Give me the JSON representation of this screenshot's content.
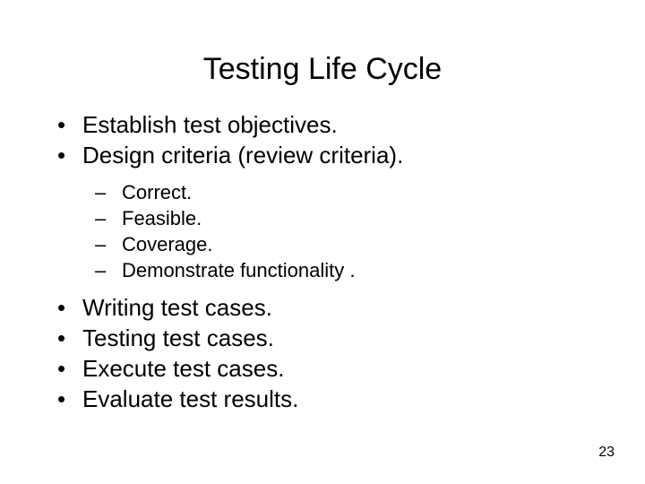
{
  "title": {
    "text": "Testing Life Cycle",
    "fontsize": 34
  },
  "body_fontsize_l1": 26,
  "body_fontsize_l2": 22,
  "bullets_top": [
    "Establish test objectives.",
    "Design criteria (review criteria)."
  ],
  "sub_bullets": [
    "Correct.",
    "Feasible.",
    "Coverage.",
    "Demonstrate functionality ."
  ],
  "bullets_bottom": [
    "Writing test cases.",
    "Testing test cases.",
    "Execute test cases.",
    "Evaluate test results."
  ],
  "page_number": {
    "value": "23",
    "fontsize": 16
  },
  "colors": {
    "background": "#ffffff",
    "text": "#000000"
  }
}
